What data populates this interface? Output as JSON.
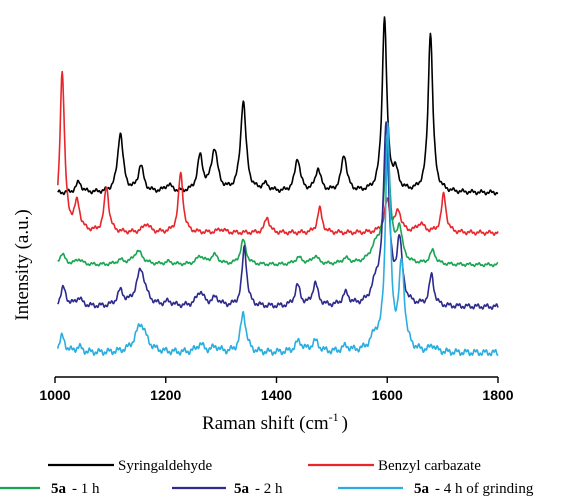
{
  "chart_data": {
    "type": "line",
    "xlabel_main": "Raman shift (cm",
    "xlabel_sup": "-1",
    "xlabel_close": ")",
    "ylabel": "Intensity (a.u.)",
    "xlim": [
      1000,
      1800
    ],
    "x_ticks": [
      "1000",
      "1200",
      "1400",
      "1600",
      "1800"
    ],
    "colors": {
      "syringaldehyde": "#000000",
      "benzyl": "#e8262c",
      "g1h": "#19a552",
      "g2h": "#2e2a8c",
      "g4h": "#2aaee0"
    },
    "series": [
      {
        "id": "syringaldehyde",
        "name": "Syringaldehyde",
        "baseline": 0.0,
        "peaks": [
          [
            1043,
            0.3,
            6
          ],
          [
            1118,
            1.7,
            6
          ],
          [
            1155,
            0.75,
            6
          ],
          [
            1205,
            0.2,
            8
          ],
          [
            1262,
            1.0,
            6
          ],
          [
            1288,
            1.2,
            7
          ],
          [
            1340,
            2.6,
            6
          ],
          [
            1380,
            0.2,
            8
          ],
          [
            1438,
            0.95,
            6
          ],
          [
            1475,
            0.65,
            6
          ],
          [
            1522,
            1.05,
            6
          ],
          [
            1595,
            5.0,
            5
          ],
          [
            1615,
            0.5,
            6
          ],
          [
            1678,
            4.6,
            5
          ]
        ]
      },
      {
        "id": "benzyl",
        "name": "Benzyl carbazate",
        "baseline": 0.0,
        "peaks": [
          [
            1013,
            4.6,
            5
          ],
          [
            1040,
            0.8,
            6
          ],
          [
            1093,
            1.3,
            5
          ],
          [
            1165,
            0.25,
            7
          ],
          [
            1227,
            1.7,
            5
          ],
          [
            1300,
            0.1,
            8
          ],
          [
            1383,
            0.45,
            5
          ],
          [
            1478,
            0.7,
            5
          ],
          [
            1600,
            0.9,
            6
          ],
          [
            1620,
            0.6,
            6
          ],
          [
            1660,
            0.25,
            8
          ],
          [
            1702,
            1.1,
            5
          ]
        ]
      },
      {
        "id": "g1h",
        "name": "- 1 h",
        "name_bold": "5a",
        "baseline": 0.0,
        "peaks": [
          [
            1013,
            0.4,
            6
          ],
          [
            1043,
            0.2,
            7
          ],
          [
            1118,
            0.15,
            8
          ],
          [
            1150,
            0.5,
            10
          ],
          [
            1205,
            0.1,
            8
          ],
          [
            1262,
            0.3,
            8
          ],
          [
            1288,
            0.35,
            8
          ],
          [
            1340,
            0.9,
            6
          ],
          [
            1440,
            0.25,
            8
          ],
          [
            1470,
            0.3,
            7
          ],
          [
            1525,
            0.2,
            8
          ],
          [
            1580,
            0.6,
            12
          ],
          [
            1600,
            4.5,
            6
          ],
          [
            1622,
            1.2,
            6
          ],
          [
            1682,
            0.5,
            6
          ]
        ]
      },
      {
        "id": "g2h",
        "name": "- 2 h",
        "name_bold": "5a",
        "baseline": 0.0,
        "peaks": [
          [
            1015,
            0.45,
            6
          ],
          [
            1043,
            0.2,
            7
          ],
          [
            1118,
            0.35,
            7
          ],
          [
            1155,
            0.9,
            10
          ],
          [
            1205,
            0.1,
            8
          ],
          [
            1262,
            0.35,
            8
          ],
          [
            1290,
            0.2,
            8
          ],
          [
            1342,
            1.45,
            5
          ],
          [
            1438,
            0.5,
            6
          ],
          [
            1470,
            0.55,
            6
          ],
          [
            1525,
            0.3,
            7
          ],
          [
            1580,
            0.45,
            10
          ],
          [
            1598,
            4.3,
            6
          ],
          [
            1622,
            1.5,
            6
          ],
          [
            1680,
            0.75,
            5
          ]
        ]
      },
      {
        "id": "g4h",
        "name": "- 4 h of grinding",
        "name_bold": "5a",
        "baseline": 0.0,
        "peaks": [
          [
            1013,
            0.3,
            6
          ],
          [
            1043,
            0.1,
            7
          ],
          [
            1155,
            0.55,
            12
          ],
          [
            1262,
            0.15,
            8
          ],
          [
            1290,
            0.1,
            8
          ],
          [
            1340,
            0.75,
            6
          ],
          [
            1440,
            0.2,
            8
          ],
          [
            1470,
            0.2,
            8
          ],
          [
            1525,
            0.1,
            8
          ],
          [
            1578,
            0.25,
            10
          ],
          [
            1601,
            4.2,
            5
          ],
          [
            1626,
            1.6,
            6
          ],
          [
            1682,
            0.12,
            6
          ]
        ]
      }
    ]
  }
}
